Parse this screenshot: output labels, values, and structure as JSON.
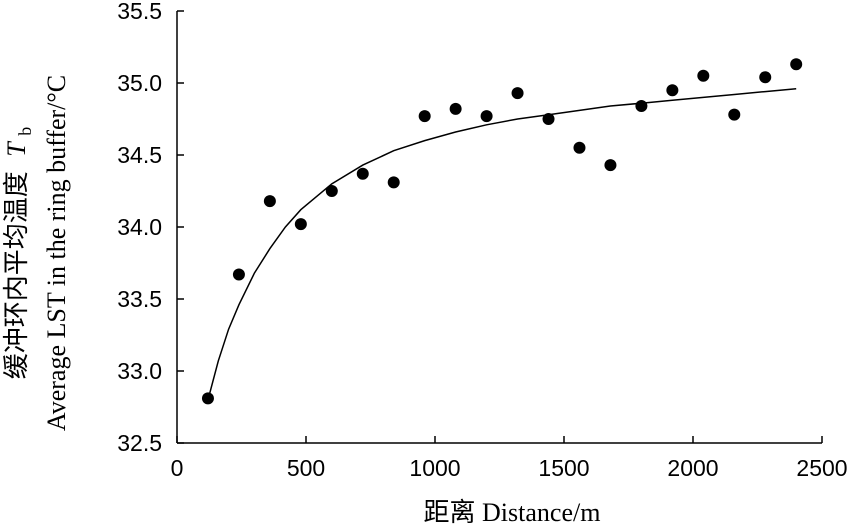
{
  "chart_data": {
    "type": "scatter",
    "xlabel": "距离 Distance/m",
    "ylabel_line1": "缓冲环内平均温度",
    "ylabel_symbol": "T",
    "ylabel_subscript": "b",
    "ylabel_line2": "Average LST in the ring buffer/°C",
    "xlim": [
      0,
      2500
    ],
    "ylim": [
      32.5,
      35.5
    ],
    "xticks": [
      0,
      500,
      1000,
      1500,
      2000,
      2500
    ],
    "yticks": [
      "32.5",
      "33.0",
      "33.5",
      "34.0",
      "34.5",
      "35.0",
      "35.5"
    ],
    "grid": false,
    "legend": "none",
    "series": [
      {
        "x": [
          120,
          240,
          360,
          480,
          600,
          720,
          840,
          960,
          1080,
          1200,
          1320,
          1440,
          1560,
          1680,
          1800,
          1920,
          2040,
          2160,
          2280,
          2400
        ],
        "y": [
          32.81,
          33.67,
          34.18,
          34.02,
          34.25,
          34.37,
          34.31,
          34.77,
          34.82,
          34.77,
          34.93,
          34.75,
          34.55,
          34.43,
          34.84,
          34.95,
          35.05,
          34.78,
          35.04,
          35.13
        ]
      }
    ],
    "fit_curve": {
      "model": "logarithmic",
      "x": [
        120,
        160,
        200,
        240,
        300,
        360,
        420,
        480,
        600,
        720,
        840,
        960,
        1080,
        1200,
        1320,
        1440,
        1560,
        1680,
        1800,
        1920,
        2040,
        2160,
        2280,
        2400
      ],
      "y": [
        32.8,
        33.07,
        33.29,
        33.46,
        33.68,
        33.85,
        34.0,
        34.12,
        34.3,
        34.43,
        34.53,
        34.6,
        34.66,
        34.71,
        34.75,
        34.78,
        34.81,
        34.84,
        34.86,
        34.88,
        34.9,
        34.92,
        34.94,
        34.96
      ]
    },
    "colors": {
      "points": "#000000",
      "curve": "#000000",
      "axes": "#000000"
    }
  }
}
